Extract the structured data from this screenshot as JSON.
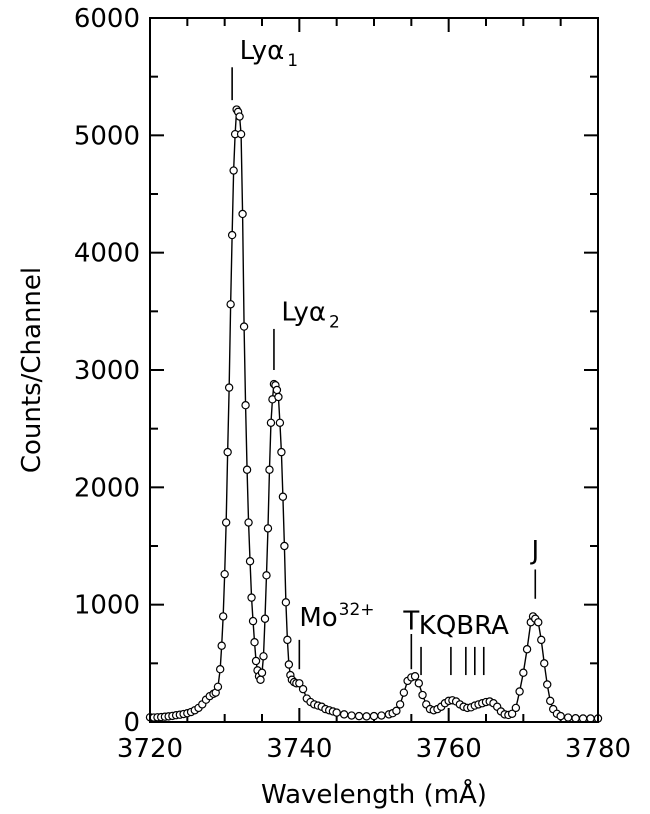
{
  "chart_data": {
    "type": "scatter",
    "title": "",
    "xlabel": "Wavelength (mÅ)",
    "ylabel": "Counts/Channel",
    "xlim": [
      3720,
      3780
    ],
    "ylim": [
      0,
      6000
    ],
    "x_ticks": [
      "3720",
      "3740",
      "3760",
      "3780"
    ],
    "y_ticks": [
      "0",
      "1000",
      "2000",
      "3000",
      "4000",
      "5000",
      "6000"
    ],
    "grid": false,
    "legend": "none",
    "series": [
      {
        "marker": "open-circle",
        "line": "solid",
        "points": [
          [
            3720.0,
            40
          ],
          [
            3720.5,
            38
          ],
          [
            3721.0,
            40
          ],
          [
            3721.5,
            42
          ],
          [
            3722.0,
            45
          ],
          [
            3722.5,
            48
          ],
          [
            3723.0,
            52
          ],
          [
            3723.5,
            58
          ],
          [
            3724.0,
            62
          ],
          [
            3724.5,
            68
          ],
          [
            3725.0,
            75
          ],
          [
            3725.5,
            85
          ],
          [
            3726.0,
            100
          ],
          [
            3726.5,
            120
          ],
          [
            3727.0,
            150
          ],
          [
            3727.5,
            190
          ],
          [
            3728.0,
            220
          ],
          [
            3728.5,
            240
          ],
          [
            3728.8,
            250
          ],
          [
            3729.1,
            300
          ],
          [
            3729.4,
            450
          ],
          [
            3729.6,
            650
          ],
          [
            3729.8,
            900
          ],
          [
            3730.0,
            1260
          ],
          [
            3730.2,
            1700
          ],
          [
            3730.4,
            2300
          ],
          [
            3730.6,
            2850
          ],
          [
            3730.8,
            3560
          ],
          [
            3731.0,
            4150
          ],
          [
            3731.2,
            4700
          ],
          [
            3731.4,
            5010
          ],
          [
            3731.6,
            5220
          ],
          [
            3731.8,
            5200
          ],
          [
            3732.0,
            5160
          ],
          [
            3732.2,
            5010
          ],
          [
            3732.4,
            4330
          ],
          [
            3732.6,
            3370
          ],
          [
            3732.8,
            2700
          ],
          [
            3733.0,
            2150
          ],
          [
            3733.2,
            1700
          ],
          [
            3733.4,
            1370
          ],
          [
            3733.6,
            1060
          ],
          [
            3733.8,
            860
          ],
          [
            3734.0,
            680
          ],
          [
            3734.2,
            520
          ],
          [
            3734.4,
            440
          ],
          [
            3734.6,
            390
          ],
          [
            3734.8,
            360
          ],
          [
            3735.0,
            420
          ],
          [
            3735.2,
            560
          ],
          [
            3735.4,
            880
          ],
          [
            3735.6,
            1250
          ],
          [
            3735.8,
            1650
          ],
          [
            3736.0,
            2150
          ],
          [
            3736.2,
            2550
          ],
          [
            3736.4,
            2750
          ],
          [
            3736.6,
            2880
          ],
          [
            3736.8,
            2870
          ],
          [
            3737.0,
            2830
          ],
          [
            3737.2,
            2770
          ],
          [
            3737.4,
            2550
          ],
          [
            3737.6,
            2300
          ],
          [
            3737.8,
            1920
          ],
          [
            3738.0,
            1500
          ],
          [
            3738.2,
            1020
          ],
          [
            3738.4,
            700
          ],
          [
            3738.6,
            490
          ],
          [
            3738.8,
            400
          ],
          [
            3739.0,
            360
          ],
          [
            3739.3,
            340
          ],
          [
            3739.6,
            330
          ],
          [
            3740.0,
            330
          ],
          [
            3740.5,
            280
          ],
          [
            3741.0,
            200
          ],
          [
            3741.5,
            170
          ],
          [
            3742.0,
            150
          ],
          [
            3742.5,
            140
          ],
          [
            3743.0,
            130
          ],
          [
            3743.5,
            110
          ],
          [
            3744.0,
            100
          ],
          [
            3744.5,
            90
          ],
          [
            3745.0,
            80
          ],
          [
            3746.0,
            65
          ],
          [
            3747.0,
            55
          ],
          [
            3748.0,
            50
          ],
          [
            3749.0,
            48
          ],
          [
            3750.0,
            50
          ],
          [
            3751.0,
            55
          ],
          [
            3752.0,
            65
          ],
          [
            3752.5,
            75
          ],
          [
            3753.0,
            95
          ],
          [
            3753.5,
            150
          ],
          [
            3754.0,
            250
          ],
          [
            3754.5,
            350
          ],
          [
            3755.0,
            380
          ],
          [
            3755.5,
            390
          ],
          [
            3756.0,
            330
          ],
          [
            3756.5,
            230
          ],
          [
            3757.0,
            150
          ],
          [
            3757.5,
            110
          ],
          [
            3758.0,
            100
          ],
          [
            3758.5,
            110
          ],
          [
            3759.0,
            130
          ],
          [
            3759.5,
            160
          ],
          [
            3760.0,
            180
          ],
          [
            3760.5,
            185
          ],
          [
            3761.0,
            175
          ],
          [
            3761.5,
            150
          ],
          [
            3762.0,
            130
          ],
          [
            3762.5,
            120
          ],
          [
            3763.0,
            125
          ],
          [
            3763.5,
            140
          ],
          [
            3764.0,
            150
          ],
          [
            3764.5,
            160
          ],
          [
            3765.0,
            170
          ],
          [
            3765.5,
            175
          ],
          [
            3766.0,
            160
          ],
          [
            3766.5,
            130
          ],
          [
            3767.0,
            90
          ],
          [
            3767.5,
            65
          ],
          [
            3768.0,
            60
          ],
          [
            3768.5,
            70
          ],
          [
            3769.0,
            120
          ],
          [
            3769.5,
            260
          ],
          [
            3770.0,
            420
          ],
          [
            3770.5,
            620
          ],
          [
            3771.0,
            850
          ],
          [
            3771.3,
            900
          ],
          [
            3771.6,
            880
          ],
          [
            3772.0,
            850
          ],
          [
            3772.4,
            700
          ],
          [
            3772.8,
            500
          ],
          [
            3773.2,
            320
          ],
          [
            3773.6,
            180
          ],
          [
            3774.0,
            110
          ],
          [
            3774.5,
            70
          ],
          [
            3775.0,
            50
          ],
          [
            3776.0,
            38
          ],
          [
            3777.0,
            32
          ],
          [
            3778.0,
            30
          ],
          [
            3779.0,
            30
          ],
          [
            3780.0,
            30
          ]
        ]
      }
    ],
    "annotations": [
      {
        "id": "lya1",
        "text": "Lyα",
        "sub": "1",
        "sup": "",
        "x": 3731.0,
        "marker_low": 5300,
        "marker_high": 5580,
        "label_x": 3732.0,
        "label_y": 5650,
        "anchor": "start"
      },
      {
        "id": "lya2",
        "text": "Lyα",
        "sub": "2",
        "sup": "",
        "x": 3736.6,
        "marker_low": 3000,
        "marker_high": 3350,
        "label_x": 3737.6,
        "label_y": 3420,
        "anchor": "start"
      },
      {
        "id": "mo32",
        "text": "Mo",
        "sub": "",
        "sup": "32+",
        "x": 3740.0,
        "marker_low": 450,
        "marker_high": 700,
        "label_x": 3740.0,
        "label_y": 820,
        "anchor": "start"
      },
      {
        "id": "t",
        "text": "T",
        "sub": "",
        "sup": "",
        "x": 3755.0,
        "marker_low": 450,
        "marker_high": 750,
        "label_x": 3755.0,
        "label_y": 790,
        "anchor": "middle"
      },
      {
        "id": "kqbra",
        "text": "KQBRA",
        "sub": "",
        "sup": "",
        "x": null,
        "marker_low": null,
        "marker_high": null,
        "label_x": 3756.0,
        "label_y": 750,
        "anchor": "start"
      },
      {
        "id": "j",
        "text": "J",
        "sub": "",
        "sup": "",
        "x": 3771.6,
        "marker_low": 1050,
        "marker_high": 1300,
        "label_x": 3771.6,
        "label_y": 1390,
        "anchor": "middle"
      }
    ],
    "line_markers": [
      {
        "x": 3756.3,
        "low": 400,
        "high": 640
      },
      {
        "x": 3760.3,
        "low": 400,
        "high": 640
      },
      {
        "x": 3762.3,
        "low": 400,
        "high": 640
      },
      {
        "x": 3763.5,
        "low": 400,
        "high": 640
      },
      {
        "x": 3764.7,
        "low": 400,
        "high": 640
      }
    ]
  }
}
